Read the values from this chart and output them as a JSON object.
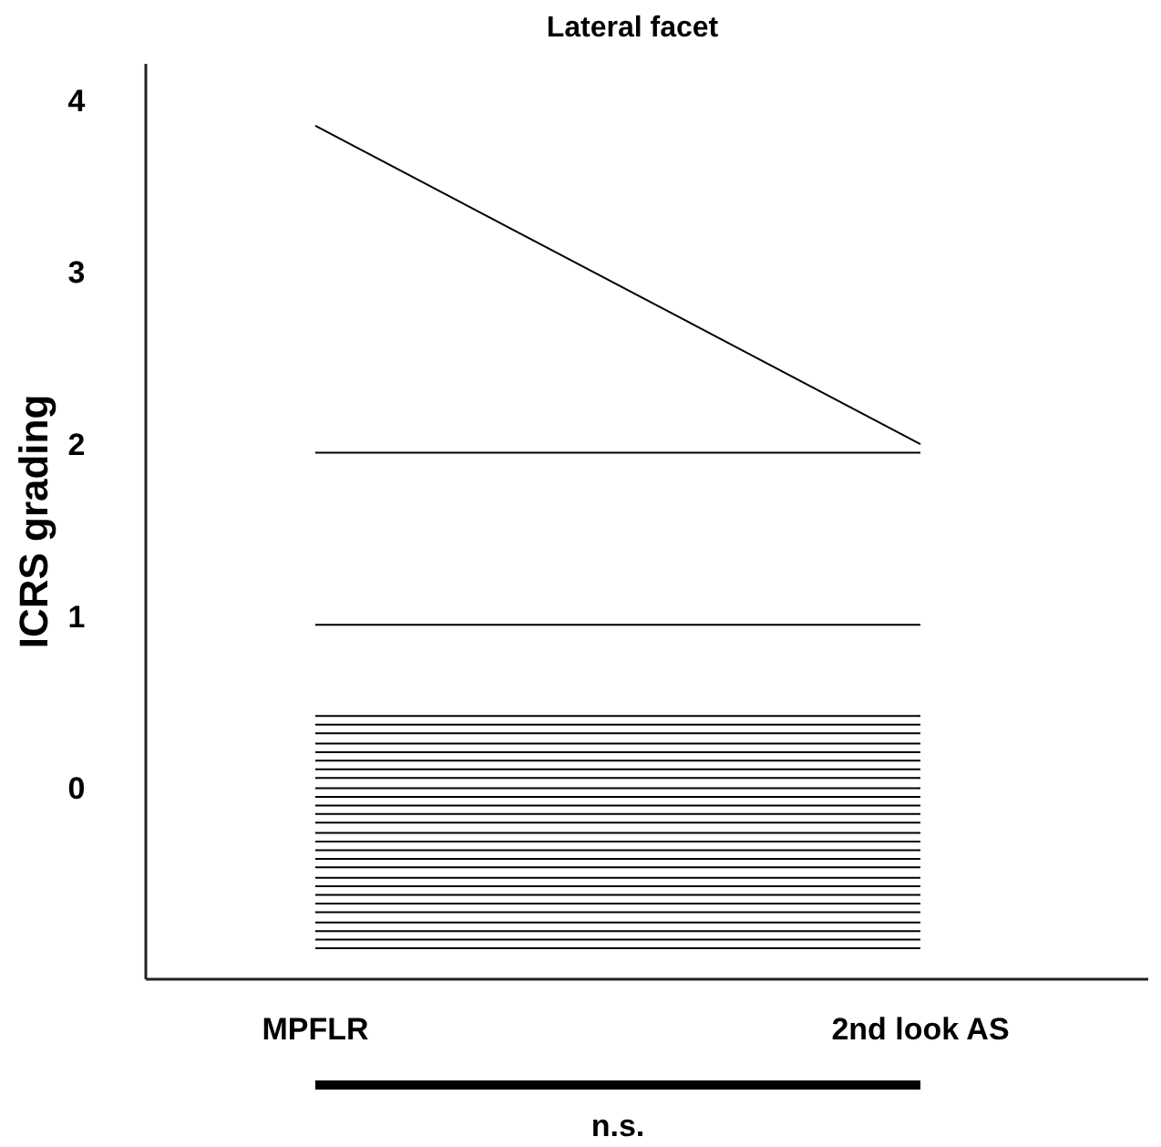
{
  "chart_data": {
    "type": "line",
    "title": "Lateral facet",
    "ylabel": "ICRS grading",
    "categories": [
      "MPFLR",
      "2nd look AS"
    ],
    "ylim": [
      -1.11,
      4.21
    ],
    "yticks": [
      0,
      1,
      2,
      3,
      4
    ],
    "grid": false,
    "marker": "none",
    "line_style": "solid",
    "annotations": [
      "n.s."
    ],
    "series": [
      {
        "color": "#000000",
        "values": [
          3.85,
          2.0
        ]
      },
      {
        "color": "#000000",
        "values": [
          1.95,
          1.95
        ]
      },
      {
        "color": "#000000",
        "values": [
          0.95,
          0.95
        ]
      },
      {
        "color": "#000000",
        "values": [
          0.42,
          0.42
        ]
      },
      {
        "color": "#000000",
        "values": [
          0.37,
          0.37
        ]
      },
      {
        "color": "#000000",
        "values": [
          0.32,
          0.32
        ]
      },
      {
        "color": "#000000",
        "values": [
          0.26,
          0.26
        ]
      },
      {
        "color": "#000000",
        "values": [
          0.21,
          0.21
        ]
      },
      {
        "color": "#000000",
        "values": [
          0.16,
          0.16
        ]
      },
      {
        "color": "#000000",
        "values": [
          0.11,
          0.11
        ]
      },
      {
        "color": "#000000",
        "values": [
          0.06,
          0.06
        ]
      },
      {
        "color": "#000000",
        "values": [
          0.0,
          0.0
        ]
      },
      {
        "color": "#000000",
        "values": [
          -0.05,
          -0.05
        ]
      },
      {
        "color": "#000000",
        "values": [
          -0.1,
          -0.1
        ]
      },
      {
        "color": "#000000",
        "values": [
          -0.15,
          -0.15
        ]
      },
      {
        "color": "#000000",
        "values": [
          -0.2,
          -0.2
        ]
      },
      {
        "color": "#000000",
        "values": [
          -0.26,
          -0.26
        ]
      },
      {
        "color": "#000000",
        "values": [
          -0.31,
          -0.31
        ]
      },
      {
        "color": "#000000",
        "values": [
          -0.36,
          -0.36
        ]
      },
      {
        "color": "#000000",
        "values": [
          -0.41,
          -0.41
        ]
      },
      {
        "color": "#000000",
        "values": [
          -0.46,
          -0.46
        ]
      },
      {
        "color": "#000000",
        "values": [
          -0.52,
          -0.52
        ]
      },
      {
        "color": "#000000",
        "values": [
          -0.57,
          -0.57
        ]
      },
      {
        "color": "#000000",
        "values": [
          -0.62,
          -0.62
        ]
      },
      {
        "color": "#000000",
        "values": [
          -0.67,
          -0.67
        ]
      },
      {
        "color": "#000000",
        "values": [
          -0.72,
          -0.72
        ]
      },
      {
        "color": "#000000",
        "values": [
          -0.78,
          -0.78
        ]
      },
      {
        "color": "#000000",
        "values": [
          -0.83,
          -0.83
        ]
      },
      {
        "color": "#000000",
        "values": [
          -0.88,
          -0.88
        ]
      },
      {
        "color": "#000000",
        "values": [
          -0.93,
          -0.93
        ]
      }
    ]
  }
}
